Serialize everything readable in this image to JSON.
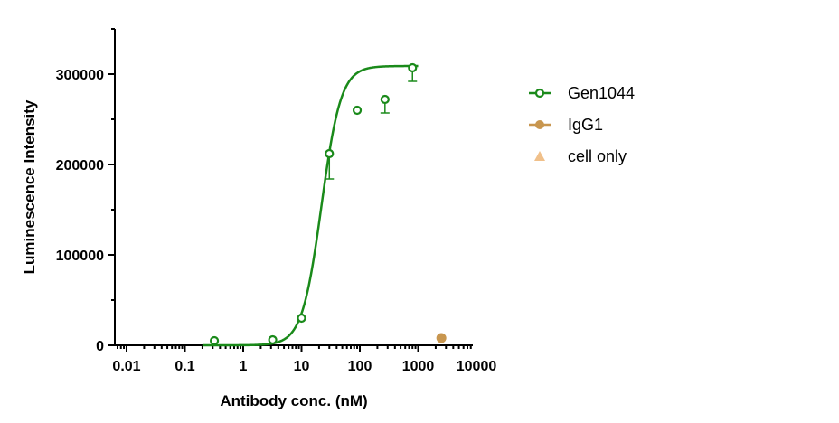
{
  "chart_data": {
    "type": "scatter",
    "title": "",
    "xlabel": "Antibody conc. (nM)",
    "ylabel": "Luminescence Intensity",
    "x_scale": "log",
    "xlim": [
      0.007,
      10000
    ],
    "ylim": [
      0,
      350000
    ],
    "x_ticks": [
      0.01,
      0.1,
      1,
      10,
      100,
      1000,
      10000
    ],
    "x_tick_labels": [
      "0.01",
      "0.1",
      "1",
      "10",
      "100",
      "1000",
      "10000"
    ],
    "y_ticks": [
      0,
      100000,
      200000,
      300000
    ],
    "y_tick_labels": [
      "0",
      "100000",
      "200000",
      "300000"
    ],
    "grid": false,
    "legend_position": "right",
    "series": [
      {
        "name": "Gen1044",
        "color": "#1a8a1a",
        "marker": "open-circle",
        "x": [
          0.32,
          3.2,
          10,
          30,
          90,
          270,
          800
        ],
        "y": [
          5000,
          6000,
          30000,
          212000,
          260000,
          272000,
          307000
        ],
        "error_minus": [
          0,
          0,
          0,
          28000,
          0,
          15000,
          15000
        ],
        "fit": {
          "bottom": 0,
          "top": 309000,
          "ec50": 22,
          "hill": 2.6
        }
      },
      {
        "name": "IgG1",
        "color": "#c8964f",
        "marker": "filled-circle",
        "x": [
          2500
        ],
        "y": [
          8000
        ]
      },
      {
        "name": "cell only",
        "color": "#f0c08a",
        "marker": "triangle",
        "x": [],
        "y": []
      }
    ]
  }
}
